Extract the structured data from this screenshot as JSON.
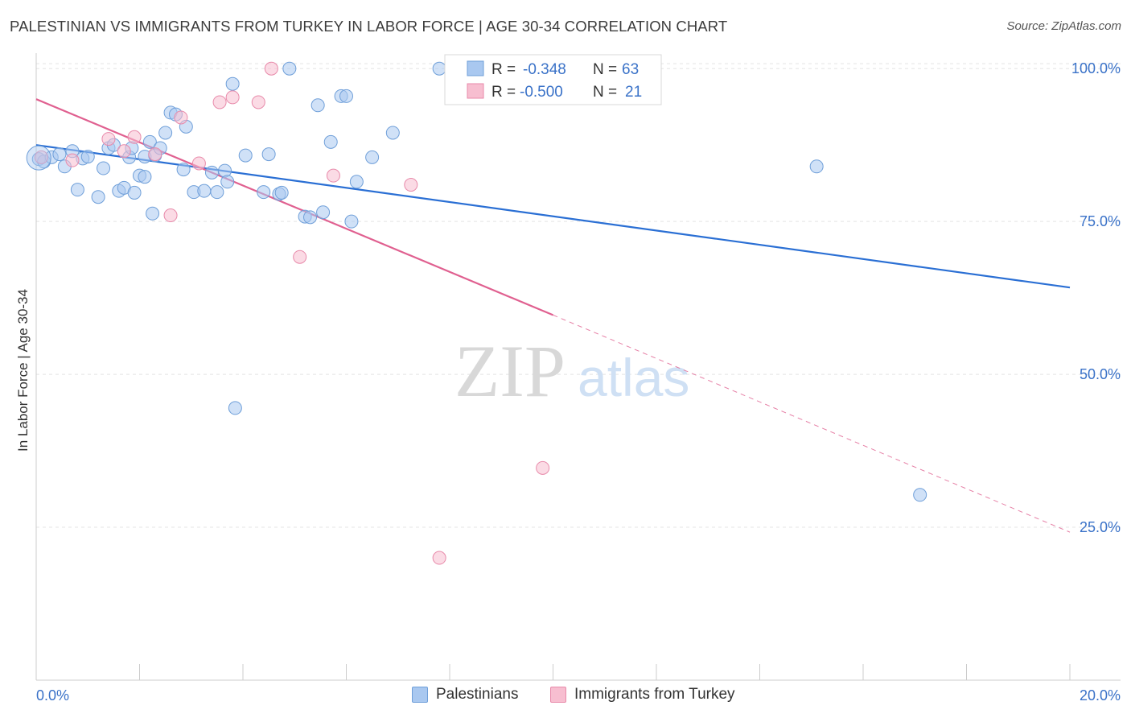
{
  "title": "PALESTINIAN VS IMMIGRANTS FROM TURKEY IN LABOR FORCE | AGE 30-34 CORRELATION CHART",
  "source": "Source: ZipAtlas.com",
  "watermark": {
    "zip": "ZIP",
    "atlas": "atlas"
  },
  "legend_box": {
    "rows": [
      {
        "r_label": "R =",
        "r_value": "-0.348",
        "n_label": "N =",
        "n_value": "63"
      },
      {
        "r_label": "R =",
        "r_value": "-0.500",
        "n_label": "N =",
        "n_value": "21"
      }
    ]
  },
  "colors": {
    "blue_fill": "#a9c8f0",
    "blue_stroke": "#6f9fd9",
    "blue_line": "#2a6fd4",
    "pink_fill": "#f7bed0",
    "pink_stroke": "#e88aaa",
    "pink_line": "#e06090",
    "axis_text": "#3a72c8",
    "grid": "#e4e4e4"
  },
  "chart_data": {
    "type": "scatter",
    "title": "PALESTINIAN VS IMMIGRANTS FROM TURKEY IN LABOR FORCE | AGE 30-34 CORRELATION CHART",
    "xlabel": "",
    "ylabel": "In Labor Force | Age 30-34",
    "xlim": [
      0,
      20
    ],
    "ylim": [
      0,
      102
    ],
    "x_tick_labels": [
      "0.0%",
      "20.0%"
    ],
    "y_ticks": [
      25,
      50,
      75,
      100
    ],
    "y_tick_labels": [
      "25.0%",
      "50.0%",
      "75.0%",
      "100.0%"
    ],
    "legend_position": "bottom-center",
    "series": [
      {
        "name": "Palestinians",
        "color": "blue",
        "r": -0.348,
        "n": 63,
        "points": [
          [
            0.05,
            85.2
          ],
          [
            0.15,
            84.8
          ],
          [
            0.3,
            85.5
          ],
          [
            0.45,
            86.0
          ],
          [
            0.55,
            84.0
          ],
          [
            0.7,
            86.5
          ],
          [
            0.8,
            80.2
          ],
          [
            0.9,
            85.3
          ],
          [
            1.0,
            85.6
          ],
          [
            1.2,
            79.0
          ],
          [
            1.3,
            83.7
          ],
          [
            1.4,
            87.0
          ],
          [
            1.5,
            87.5
          ],
          [
            1.6,
            80.0
          ],
          [
            1.7,
            80.5
          ],
          [
            1.8,
            85.5
          ],
          [
            1.85,
            87.0
          ],
          [
            1.9,
            79.7
          ],
          [
            2.0,
            82.5
          ],
          [
            2.1,
            85.6
          ],
          [
            2.1,
            82.3
          ],
          [
            2.2,
            88.0
          ],
          [
            2.25,
            76.3
          ],
          [
            2.3,
            85.8
          ],
          [
            2.4,
            87.0
          ],
          [
            2.5,
            89.5
          ],
          [
            2.6,
            92.8
          ],
          [
            2.7,
            92.5
          ],
          [
            2.85,
            83.5
          ],
          [
            2.9,
            90.5
          ],
          [
            3.05,
            79.8
          ],
          [
            3.25,
            80.0
          ],
          [
            3.4,
            83.0
          ],
          [
            3.5,
            79.8
          ],
          [
            3.65,
            83.3
          ],
          [
            3.7,
            81.5
          ],
          [
            3.8,
            97.5
          ],
          [
            4.05,
            85.8
          ],
          [
            4.4,
            79.8
          ],
          [
            4.5,
            86.0
          ],
          [
            4.7,
            79.5
          ],
          [
            4.75,
            79.7
          ],
          [
            4.9,
            100.0
          ],
          [
            5.2,
            75.8
          ],
          [
            5.3,
            75.7
          ],
          [
            5.45,
            94.0
          ],
          [
            5.55,
            76.5
          ],
          [
            5.9,
            95.5
          ],
          [
            6.0,
            95.5
          ],
          [
            6.1,
            75.0
          ],
          [
            6.2,
            81.5
          ],
          [
            6.5,
            85.5
          ],
          [
            6.9,
            89.5
          ],
          [
            7.8,
            100.0
          ],
          [
            15.1,
            84.0
          ],
          [
            17.1,
            30.3
          ],
          [
            3.85,
            44.5
          ],
          [
            5.7,
            88.0
          ]
        ],
        "trend": {
          "x0": 0,
          "y0": 87.5,
          "x1": 20,
          "y1": 64.2
        }
      },
      {
        "name": "Immigrants from Turkey",
        "color": "pink",
        "r": -0.5,
        "n": 21,
        "points": [
          [
            0.1,
            85.5
          ],
          [
            0.7,
            85.0
          ],
          [
            1.4,
            88.5
          ],
          [
            1.7,
            86.5
          ],
          [
            1.9,
            88.8
          ],
          [
            2.3,
            86.0
          ],
          [
            2.6,
            76.0
          ],
          [
            2.8,
            92.0
          ],
          [
            3.15,
            84.5
          ],
          [
            3.55,
            94.5
          ],
          [
            3.8,
            95.3
          ],
          [
            4.3,
            94.5
          ],
          [
            4.55,
            100.0
          ],
          [
            5.1,
            69.2
          ],
          [
            5.75,
            82.5
          ],
          [
            7.25,
            81.0
          ],
          [
            7.8,
            20.0
          ],
          [
            9.8,
            34.7
          ]
        ],
        "trend": {
          "x0": 0,
          "y0": 95.0,
          "x1": 10.0,
          "y1": 59.7,
          "dash_to": {
            "x": 20,
            "y": 24.2
          }
        }
      }
    ]
  }
}
